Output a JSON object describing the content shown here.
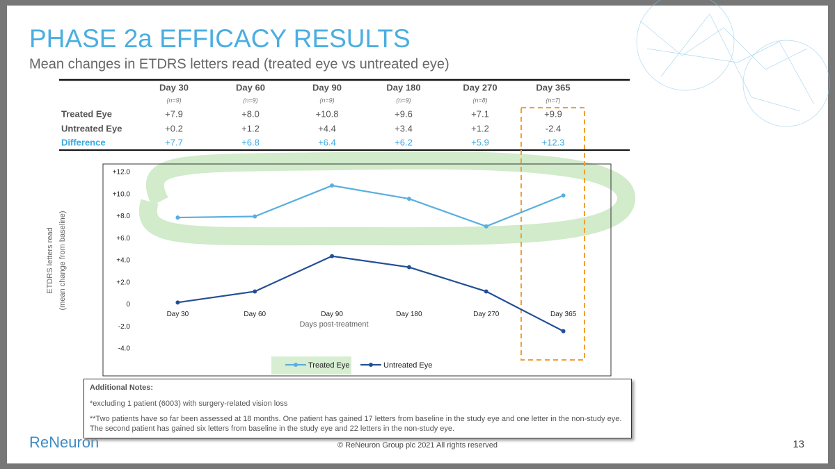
{
  "header": {
    "title": "PHASE 2a EFFICACY RESULTS",
    "subtitle": "Mean changes in ETDRS letters read (treated eye vs untreated eye)"
  },
  "table": {
    "columns": [
      {
        "label": "Day 30",
        "n": "(n=9)"
      },
      {
        "label": "Day 60",
        "n": "(n=9)"
      },
      {
        "label": "Day 90",
        "n": "(n=9)"
      },
      {
        "label": "Day 180",
        "n": "(n=9)"
      },
      {
        "label": "Day 270",
        "n": "(n=8)"
      },
      {
        "label": "Day 365",
        "n": "(n=7)"
      }
    ],
    "rows": [
      {
        "label": "Treated Eye",
        "values": [
          "+7.9",
          "+8.0",
          "+10.8",
          "+9.6",
          "+7.1",
          "+9.9"
        ]
      },
      {
        "label": "Untreated Eye",
        "values": [
          "+0.2",
          "+1.2",
          "+4.4",
          "+3.4",
          "+1.2",
          "-2.4"
        ]
      },
      {
        "label": "Difference",
        "values": [
          "+7.7",
          "+6.8",
          "+6.4",
          "+6.2",
          "+5.9",
          "+12.3"
        ]
      }
    ]
  },
  "chart_data": {
    "type": "line",
    "x_label": "Days post-treatment",
    "y_label": [
      "ETDRS letters read",
      "(mean change from baseline)"
    ],
    "categories": [
      "Day 30",
      "Day 60",
      "Day 90",
      "Day 180",
      "Day 270",
      "Day 365"
    ],
    "series": [
      {
        "name": "Treated Eye",
        "color": "#5aaee0",
        "values": [
          7.9,
          8.0,
          10.8,
          9.6,
          7.1,
          9.9
        ]
      },
      {
        "name": "Untreated Eye",
        "color": "#234f96",
        "values": [
          0.2,
          1.2,
          4.4,
          3.4,
          1.2,
          -2.4
        ]
      }
    ],
    "ylim": [
      -4,
      12
    ],
    "yticks": [
      {
        "value": -4,
        "label": "-4.0"
      },
      {
        "value": -2,
        "label": "-2.0"
      },
      0,
      {
        "value": 2,
        "label": "+2.0"
      },
      {
        "value": 4,
        "label": "+4.0"
      },
      {
        "value": 6,
        "label": "+6.0"
      },
      {
        "value": 8,
        "label": "+8.0"
      },
      {
        "value": 10,
        "label": "+10.0"
      },
      {
        "value": 12,
        "label": "+12.0"
      }
    ],
    "grid": false,
    "legend": "bottom"
  },
  "notes": {
    "title": "Additional Notes:",
    "items": [
      "*excluding 1 patient (6003) with surgery-related vision loss",
      "**Two patients have so far been assessed at 18 months. One patient has gained 17 letters from baseline in the study eye and one letter in the non-study eye. The second patient has gained six letters from baseline in the study eye and 22 letters in the non-study eye."
    ]
  },
  "footer": {
    "logo": "ReNeuron",
    "copyright": "© ReNeuron Group plc 2021 All rights reserved",
    "page": "13"
  }
}
